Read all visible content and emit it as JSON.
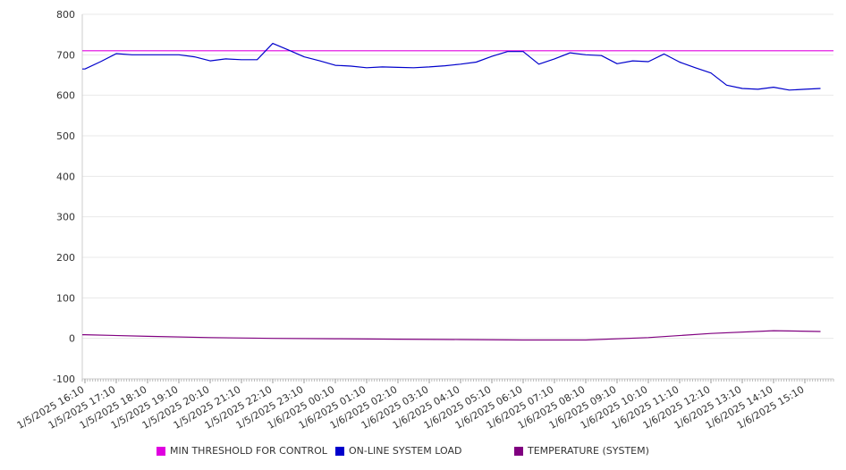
{
  "chart_data": {
    "type": "line",
    "title": "",
    "xlabel": "",
    "ylabel": "",
    "ylim": [
      -100,
      800
    ],
    "yticks": [
      "800",
      "700",
      "600",
      "500",
      "400",
      "300",
      "200",
      "100",
      "0",
      "-100"
    ],
    "x_tick_labels": [
      "1/5/2025 16:10",
      "1/5/2025 17:10",
      "1/5/2025 18:10",
      "1/5/2025 19:10",
      "1/5/2025 20:10",
      "1/5/2025 21:10",
      "1/5/2025 22:10",
      "1/5/2025 23:10",
      "1/6/2025 00:10",
      "1/6/2025 01:10",
      "1/6/2025 02:10",
      "1/6/2025 03:10",
      "1/6/2025 04:10",
      "1/6/2025 05:10",
      "1/6/2025 06:10",
      "1/6/2025 07:10",
      "1/6/2025 08:10",
      "1/6/2025 09:10",
      "1/6/2025 10:10",
      "1/6/2025 11:10",
      "1/6/2025 12:10",
      "1/6/2025 13:10",
      "1/6/2025 14:10",
      "1/6/2025 15:10"
    ],
    "grid": true,
    "legend_position": "bottom",
    "series": [
      {
        "name": "MIN THRESHOLD FOR CONTROL",
        "color": "#e000e0",
        "x": [
          "1/5/2025 16:10",
          "1/6/2025 15:10"
        ],
        "values": [
          710,
          710
        ]
      },
      {
        "name": "ON-LINE SYSTEM LOAD",
        "color": "#0000cc",
        "x": [
          "1/5/2025 16:10",
          "1/5/2025 16:40",
          "1/5/2025 17:10",
          "1/5/2025 17:40",
          "1/5/2025 18:10",
          "1/5/2025 18:40",
          "1/5/2025 19:10",
          "1/5/2025 19:40",
          "1/5/2025 20:10",
          "1/5/2025 20:40",
          "1/5/2025 21:10",
          "1/5/2025 21:40",
          "1/5/2025 22:10",
          "1/5/2025 22:40",
          "1/5/2025 23:10",
          "1/5/2025 23:40",
          "1/6/2025 00:10",
          "1/6/2025 00:40",
          "1/6/2025 01:10",
          "1/6/2025 01:40",
          "1/6/2025 02:10",
          "1/6/2025 02:40",
          "1/6/2025 03:10",
          "1/6/2025 03:40",
          "1/6/2025 04:10",
          "1/6/2025 04:40",
          "1/6/2025 05:10",
          "1/6/2025 05:40",
          "1/6/2025 06:10",
          "1/6/2025 06:40",
          "1/6/2025 07:10",
          "1/6/2025 07:40",
          "1/6/2025 08:10",
          "1/6/2025 08:40",
          "1/6/2025 09:10",
          "1/6/2025 09:40",
          "1/6/2025 10:10",
          "1/6/2025 10:40",
          "1/6/2025 11:10",
          "1/6/2025 11:40",
          "1/6/2025 12:10",
          "1/6/2025 12:40",
          "1/6/2025 13:10",
          "1/6/2025 13:40",
          "1/6/2025 14:10",
          "1/6/2025 14:40",
          "1/6/2025 15:10",
          "1/6/2025 15:40"
        ],
        "values": [
          665,
          683,
          703,
          700,
          700,
          700,
          700,
          695,
          685,
          690,
          688,
          688,
          728,
          712,
          695,
          685,
          674,
          672,
          668,
          670,
          669,
          668,
          670,
          673,
          677,
          682,
          696,
          708,
          708,
          677,
          690,
          705,
          700,
          698,
          678,
          685,
          683,
          702,
          682,
          668,
          655,
          625,
          617,
          615,
          620,
          613,
          615,
          617
        ]
      },
      {
        "name": "TEMPERATURE (SYSTEM)",
        "color": "#800080",
        "x": [
          "1/5/2025 16:10",
          "1/5/2025 18:10",
          "1/5/2025 20:10",
          "1/5/2025 22:10",
          "1/6/2025 00:10",
          "1/6/2025 02:10",
          "1/6/2025 04:10",
          "1/6/2025 06:10",
          "1/6/2025 08:10",
          "1/6/2025 10:10",
          "1/6/2025 12:10",
          "1/6/2025 14:10",
          "1/6/2025 15:40"
        ],
        "values": [
          9,
          5,
          2,
          0,
          -1,
          -2,
          -3,
          -4,
          -4,
          2,
          12,
          19,
          17
        ]
      }
    ]
  }
}
